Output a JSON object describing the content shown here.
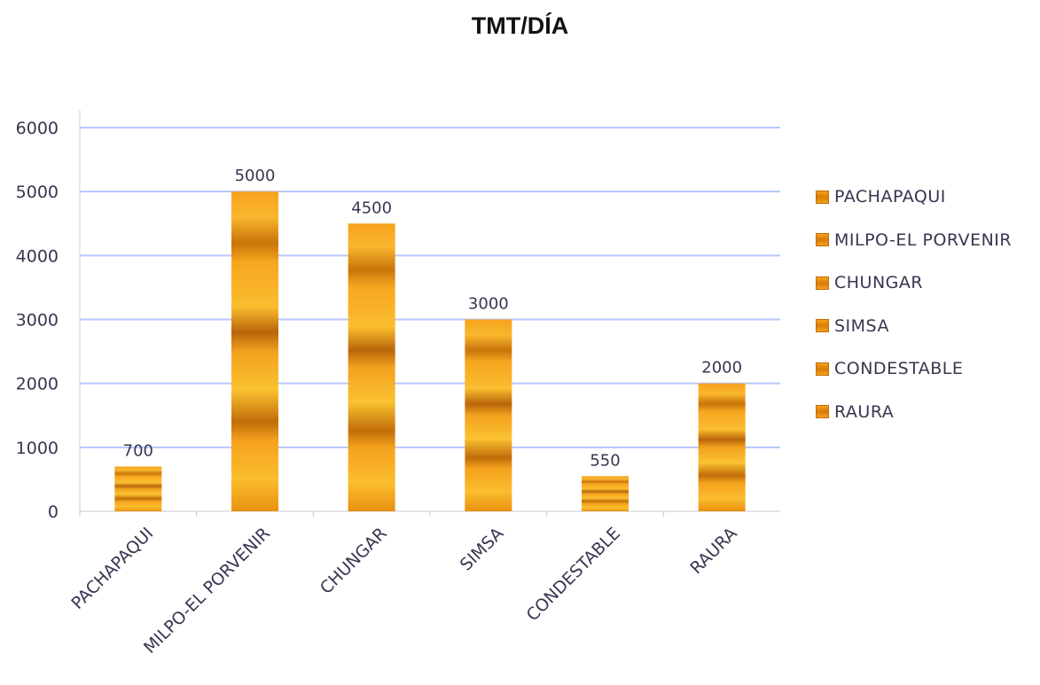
{
  "chart_data": {
    "type": "bar",
    "title": "TMT/DÍA",
    "categories": [
      "PACHAPAQUI",
      "MILPO-EL PORVENIR",
      "CHUNGAR",
      "SIMSA",
      "CONDESTABLE",
      "RAURA"
    ],
    "values": [
      700,
      5000,
      4500,
      3000,
      550,
      2000
    ],
    "data_labels": [
      "700",
      "5000",
      "4500",
      "3000",
      "550",
      "2000"
    ],
    "xlabel": "",
    "ylabel": "",
    "ylim": [
      0,
      6000
    ],
    "yticks": [
      "0",
      "1000",
      "2000",
      "3000",
      "4000",
      "5000",
      "6000"
    ],
    "grid": true,
    "legend_position": "right",
    "legend": [
      "PACHAPAQUI",
      "MILPO-EL PORVENIR",
      "CHUNGAR",
      "SIMSA",
      "CONDESTABLE",
      "RAURA"
    ],
    "colors": {
      "bar": "#f5a01c",
      "bar_dark": "#b8650a",
      "gridline": "#8a9cf0"
    }
  }
}
